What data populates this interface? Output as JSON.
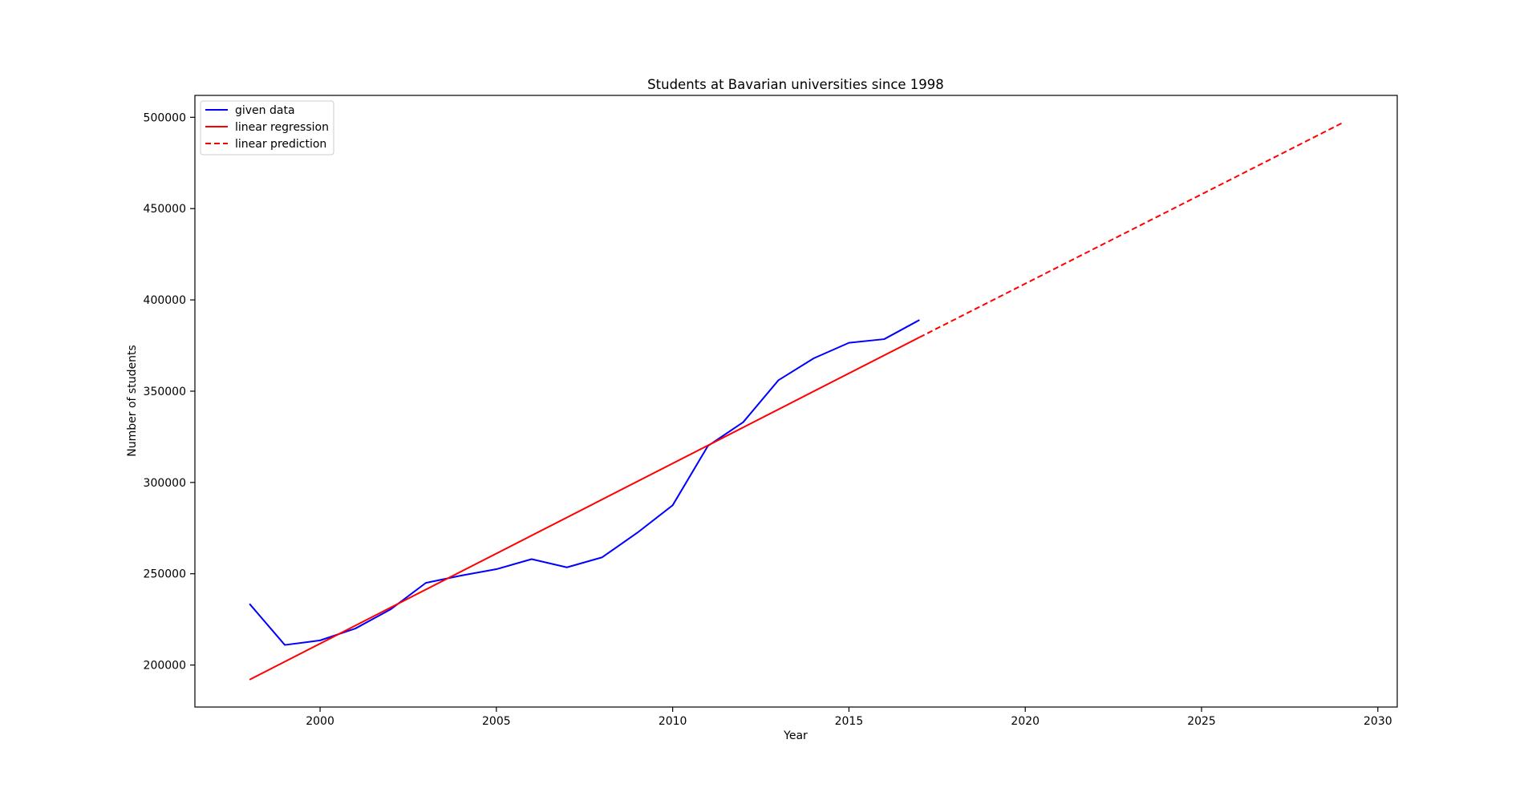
{
  "chart_data": {
    "type": "line",
    "title": "Students at Bavarian universities since 1998",
    "xlabel": "Year",
    "ylabel": "Number of students",
    "xlim": [
      1996.45,
      2030.55
    ],
    "ylim": [
      177000,
      512000
    ],
    "x_ticks": [
      2000,
      2005,
      2010,
      2015,
      2020,
      2025,
      2030
    ],
    "x_tick_labels": [
      "2000",
      "2005",
      "2010",
      "2015",
      "2020",
      "2025",
      "2030"
    ],
    "y_ticks": [
      200000,
      250000,
      300000,
      350000,
      400000,
      450000,
      500000
    ],
    "y_tick_labels": [
      "200000",
      "250000",
      "300000",
      "350000",
      "400000",
      "450000",
      "500000"
    ],
    "grid": false,
    "legend_position": "top-left",
    "series": [
      {
        "name": "given data",
        "color": "#0000ff",
        "style": "solid",
        "x": [
          1998,
          1999,
          2000,
          2001,
          2002,
          2003,
          2004,
          2005,
          2006,
          2007,
          2008,
          2009,
          2010,
          2011,
          2012,
          2013,
          2014,
          2015,
          2016,
          2017
        ],
        "y": [
          233500,
          211000,
          213500,
          220000,
          230500,
          245000,
          249000,
          252500,
          258000,
          253500,
          259000,
          272500,
          287500,
          320000,
          333000,
          356000,
          368000,
          376500,
          378500,
          389000
        ]
      },
      {
        "name": "linear regression",
        "color": "#ff0000",
        "style": "solid",
        "x": [
          1998,
          2017
        ],
        "y": [
          192000,
          379500
        ]
      },
      {
        "name": "linear prediction",
        "color": "#ff0000",
        "style": "dashed",
        "x": [
          2017,
          2029
        ],
        "y": [
          379500,
          497000
        ]
      }
    ]
  }
}
